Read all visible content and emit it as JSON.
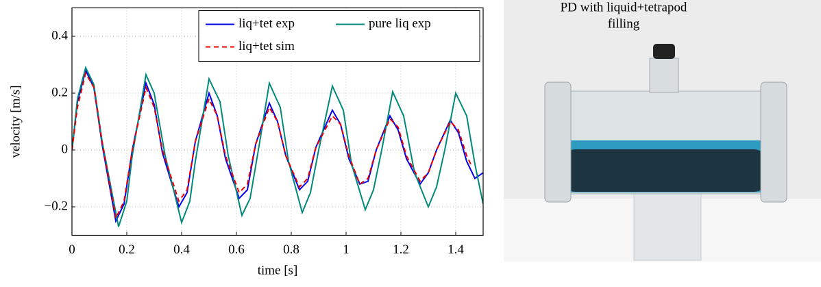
{
  "chart_data": {
    "type": "line",
    "xlabel": "time [s]",
    "ylabel": "velocity [m/s]",
    "xlim": [
      0,
      1.5
    ],
    "ylim": [
      -0.3,
      0.5
    ],
    "xticks": [
      0,
      0.2,
      0.4,
      0.6,
      0.8,
      1,
      1.2,
      1.4
    ],
    "yticks": [
      {
        "value": -0.2,
        "label": "−0.2"
      },
      0,
      0.2,
      0.4
    ],
    "grid": true,
    "legend": "upper right",
    "series": [
      {
        "name": "liq+tet exp",
        "color": "#0000ee",
        "dash": false,
        "x": [
          0,
          0.02,
          0.05,
          0.08,
          0.11,
          0.16,
          0.19,
          0.22,
          0.27,
          0.3,
          0.33,
          0.39,
          0.42,
          0.45,
          0.5,
          0.53,
          0.56,
          0.61,
          0.64,
          0.67,
          0.72,
          0.75,
          0.78,
          0.83,
          0.86,
          0.89,
          0.95,
          0.98,
          1.01,
          1.05,
          1.08,
          1.11,
          1.16,
          1.19,
          1.22,
          1.27,
          1.3,
          1.33,
          1.38,
          1.41,
          1.44,
          1.47,
          1.5
        ],
        "values": [
          0,
          0.17,
          0.28,
          0.22,
          0.02,
          -0.25,
          -0.19,
          0,
          0.235,
          0.16,
          -0.01,
          -0.2,
          -0.15,
          0.03,
          0.2,
          0.12,
          -0.03,
          -0.17,
          -0.14,
          0.02,
          0.165,
          0.1,
          -0.02,
          -0.14,
          -0.11,
          0.01,
          0.14,
          0.09,
          -0.03,
          -0.12,
          -0.11,
          0,
          0.12,
          0.07,
          -0.03,
          -0.12,
          -0.08,
          0,
          0.105,
          0.06,
          -0.04,
          -0.1,
          -0.08
        ]
      },
      {
        "name": "pure liq exp",
        "color": "#00897b",
        "dash": false,
        "x": [
          0,
          0.02,
          0.05,
          0.08,
          0.11,
          0.17,
          0.2,
          0.22,
          0.27,
          0.3,
          0.34,
          0.4,
          0.43,
          0.45,
          0.5,
          0.54,
          0.57,
          0.62,
          0.65,
          0.68,
          0.72,
          0.76,
          0.79,
          0.84,
          0.87,
          0.9,
          0.95,
          0.99,
          1.02,
          1.07,
          1.1,
          1.13,
          1.17,
          1.21,
          1.25,
          1.3,
          1.33,
          1.36,
          1.4,
          1.44,
          1.47,
          1.5
        ],
        "values": [
          0,
          0.18,
          0.29,
          0.23,
          0.03,
          -0.27,
          -0.18,
          -0.02,
          0.265,
          0.2,
          -0.02,
          -0.255,
          -0.18,
          -0.04,
          0.25,
          0.17,
          -0.02,
          -0.23,
          -0.17,
          0,
          0.235,
          0.15,
          -0.04,
          -0.22,
          -0.15,
          0,
          0.225,
          0.14,
          -0.05,
          -0.21,
          -0.14,
          0,
          0.205,
          0.12,
          -0.08,
          -0.2,
          -0.13,
          0,
          0.2,
          0.12,
          -0.05,
          -0.19
        ]
      },
      {
        "name": "liq+tet sim",
        "color": "#ee0000",
        "dash": true,
        "x": [
          0,
          0.02,
          0.05,
          0.08,
          0.11,
          0.16,
          0.19,
          0.22,
          0.27,
          0.3,
          0.33,
          0.39,
          0.42,
          0.45,
          0.5,
          0.53,
          0.56,
          0.61,
          0.64,
          0.67,
          0.72,
          0.75,
          0.78,
          0.83,
          0.86,
          0.89,
          0.95,
          0.98,
          1.01,
          1.05,
          1.08,
          1.11,
          1.16,
          1.19,
          1.22,
          1.27,
          1.3,
          1.33,
          1.38,
          1.41,
          1.44,
          1.46
        ],
        "values": [
          0,
          0.15,
          0.27,
          0.22,
          0.03,
          -0.24,
          -0.18,
          0,
          0.22,
          0.15,
          0,
          -0.18,
          -0.14,
          0.03,
          0.18,
          0.12,
          -0.02,
          -0.15,
          -0.12,
          0.02,
          0.15,
          0.1,
          -0.02,
          -0.13,
          -0.1,
          0.01,
          0.12,
          0.09,
          -0.02,
          -0.12,
          -0.1,
          0,
          0.11,
          0.08,
          -0.02,
          -0.11,
          -0.08,
          0,
          0.1,
          0.07,
          -0.02,
          -0.06
        ]
      }
    ]
  },
  "photo": {
    "caption_lines": [
      "PD with liquid+tetrapod",
      "filling"
    ]
  }
}
